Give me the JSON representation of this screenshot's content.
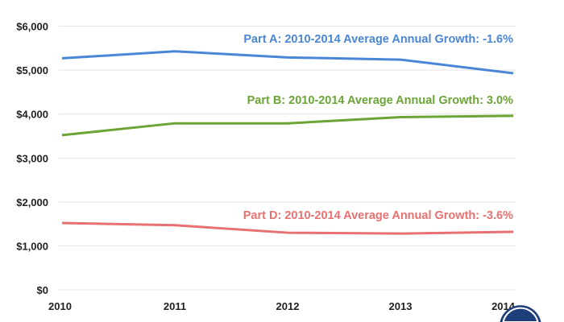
{
  "chart_data": {
    "type": "line",
    "title": "",
    "xlabel": "",
    "ylabel": "",
    "x": [
      "2010",
      "2011",
      "2012",
      "2013",
      "2014"
    ],
    "ylim": [
      0,
      6000
    ],
    "yticks": [
      0,
      1000,
      2000,
      3000,
      4000,
      5000,
      6000
    ],
    "ytick_labels": [
      "$0",
      "$1,000",
      "$2,000",
      "$3,000",
      "$4,000",
      "$5,000",
      "$6,000"
    ],
    "grid": true,
    "series": [
      {
        "key": "a",
        "color": "#4a86d8",
        "values": [
          5270,
          5430,
          5290,
          5240,
          4930
        ],
        "annotation": "Part A: 2010-2014 Average Annual Growth: -1.6%"
      },
      {
        "key": "b",
        "color": "#6aa536",
        "values": [
          3520,
          3790,
          3790,
          3930,
          3960
        ],
        "annotation": "Part B: 2010-2014 Average Annual Growth: 3.0%"
      },
      {
        "key": "d",
        "color": "#e87070",
        "values": [
          1520,
          1470,
          1300,
          1280,
          1320
        ],
        "annotation": "Part D: 2010-2014 Average Annual Growth:  -3.6%"
      }
    ]
  },
  "logo": {
    "icon": "circular-seal-logo",
    "color": "#1f3f7a"
  }
}
